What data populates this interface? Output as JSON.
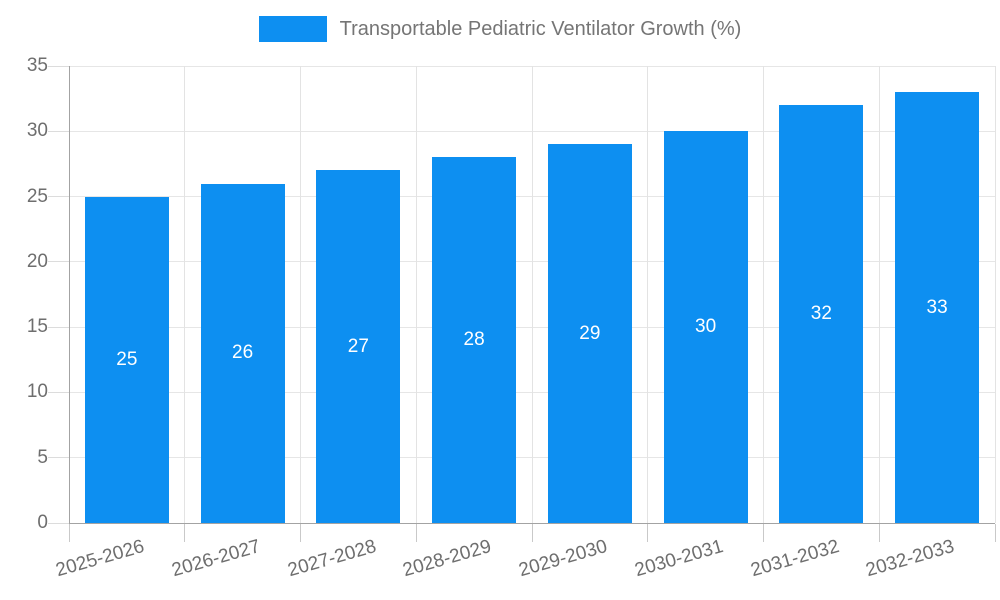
{
  "chart_data": {
    "type": "bar",
    "title": "",
    "legend": "Transportable Pediatric Ventilator Growth (%)",
    "legend_position": "top-center",
    "categories": [
      "2025-2026",
      "2026-2027",
      "2027-2028",
      "2028-2029",
      "2029-2030",
      "2030-2031",
      "2031-2032",
      "2032-2033"
    ],
    "values": [
      25,
      26,
      27,
      28,
      29,
      30,
      32,
      33
    ],
    "xlabel": "",
    "ylabel": "",
    "ylim": [
      0,
      35
    ],
    "ytick_step": 5,
    "yticks": [
      0,
      5,
      10,
      15,
      20,
      25,
      30,
      35
    ],
    "grid": "horizontal and vertical category boundaries",
    "data_labels": "white, centered inside bars",
    "colors": {
      "bar": "#0d8ff1",
      "axis_line": "#a3a3a3",
      "gridline": "#e6e6e6",
      "tick": "#c9c9c9",
      "axis_text": "#6e6e6e",
      "legend_text": "#757575",
      "bar_label_text": "#ffffff",
      "background": "#ffffff"
    }
  }
}
